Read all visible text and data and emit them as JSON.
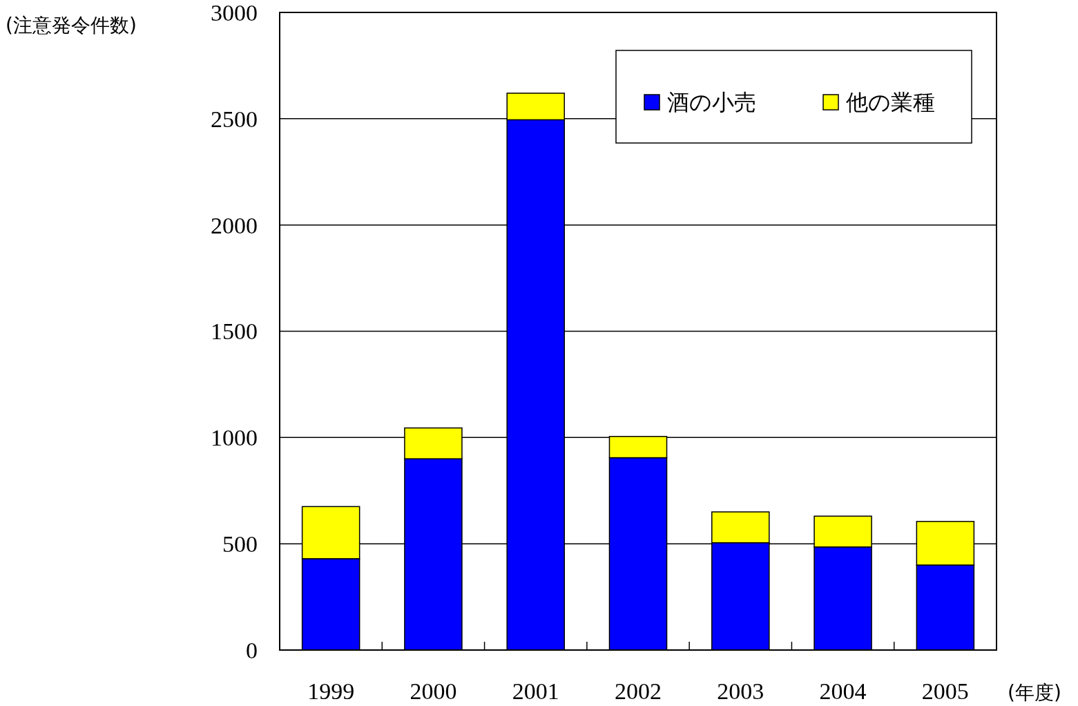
{
  "chart_data": {
    "type": "bar",
    "stacked": true,
    "categories": [
      "1999",
      "2000",
      "2001",
      "2002",
      "2003",
      "2004",
      "2005"
    ],
    "series": [
      {
        "name": "酒の小売",
        "color": "#0000ff",
        "values": [
          430,
          900,
          2495,
          905,
          505,
          485,
          400
        ]
      },
      {
        "name": "他の業種",
        "color": "#ffff00",
        "values": [
          245,
          145,
          125,
          100,
          145,
          145,
          205
        ]
      }
    ],
    "xlabel": "(年度)",
    "ylabel": "(注意発令件数)",
    "ylim": [
      0,
      3000
    ],
    "yticks": [
      0,
      500,
      1000,
      1500,
      2000,
      2500,
      3000
    ],
    "grid": "y",
    "legend": "top right"
  }
}
